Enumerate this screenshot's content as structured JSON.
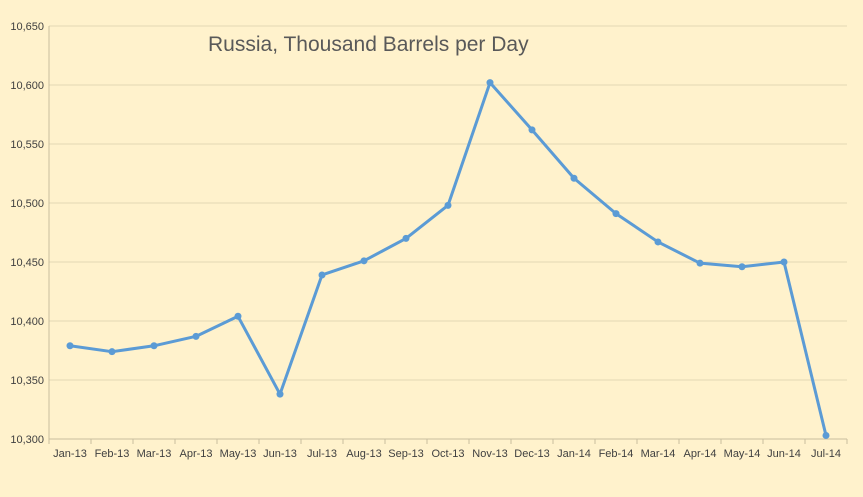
{
  "chart_data": {
    "type": "line",
    "title": "Russia, Thousand Barrels per Day",
    "categories": [
      "Jan-13",
      "Feb-13",
      "Mar-13",
      "Apr-13",
      "May-13",
      "Jun-13",
      "Jul-13",
      "Aug-13",
      "Sep-13",
      "Oct-13",
      "Nov-13",
      "Dec-13",
      "Jan-14",
      "Feb-14",
      "Mar-14",
      "Apr-14",
      "May-14",
      "Jun-14",
      "Jul-14"
    ],
    "series": [
      {
        "values": [
          10379,
          10374,
          10379,
          10387,
          10404,
          10338,
          10439,
          10451,
          10470,
          10498,
          10602,
          10562,
          10521,
          10491,
          10467,
          10449,
          10446,
          10450,
          10303
        ]
      }
    ],
    "ylim": [
      10300,
      10650
    ],
    "yticks": [
      10300,
      10350,
      10400,
      10450,
      10500,
      10550,
      10600,
      10650
    ],
    "ytick_labels": [
      "10,300",
      "10,350",
      "10,400",
      "10,450",
      "10,500",
      "10,550",
      "10,600",
      "10,650"
    ],
    "grid": true,
    "legend": "none",
    "colors": {
      "background": "#FFF2CC",
      "line": "#5B9BD5",
      "grid": "#E3D8B4"
    }
  }
}
